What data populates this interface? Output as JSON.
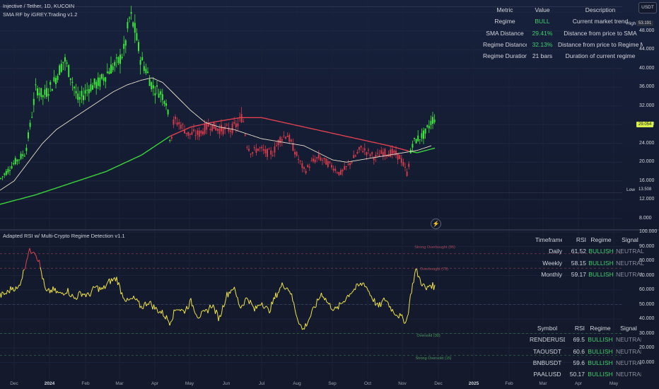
{
  "header": {
    "symbol_line": "Injective / Tether, 1D, KUCOIN",
    "indicator_line": "SMA RF by iGREY.Trading v1.2",
    "rsi_indicator_title": "Adapted RSI w/ Multi-Crypto Regime Detection v1.1",
    "currency_button": "USDT"
  },
  "regime_table": {
    "headers": [
      "Metric",
      "Value",
      "Description"
    ],
    "rows": [
      {
        "metric": "Regime",
        "value": "BULL",
        "description": "Current market trend",
        "value_color": "#3fcf6b"
      },
      {
        "metric": "SMA Distance",
        "value": "29.41%",
        "description": "Distance from price to SMA",
        "value_color": "#3fcf6b"
      },
      {
        "metric": "Regime Distance",
        "value": "32.13%",
        "description": "Distance from price to Regime MA",
        "value_color": "#3fcf6b"
      },
      {
        "metric": "Regime Duration",
        "value": "21 bars",
        "description": "Duration of current regime",
        "value_color": "#d1d4dc"
      }
    ]
  },
  "timeframe_table": {
    "headers": [
      "Timeframe",
      "RSI",
      "Regime",
      "Signal"
    ],
    "rows": [
      {
        "timeframe": "Daily",
        "rsi": "61.52",
        "regime": "BULLISH",
        "signal": "NEUTRAL"
      },
      {
        "timeframe": "Weekly",
        "rsi": "58.15",
        "regime": "BULLISH",
        "signal": "NEUTRAL"
      },
      {
        "timeframe": "Monthly",
        "rsi": "59.17",
        "regime": "BULLISH",
        "signal": "NEUTRAL"
      }
    ]
  },
  "symbol_table": {
    "headers": [
      "Symbol",
      "RSI",
      "Regime",
      "Signal"
    ],
    "rows": [
      {
        "symbol": "RENDERUSDT",
        "rsi": "69.5",
        "regime": "BULLISH",
        "signal": "NEUTRAL"
      },
      {
        "symbol": "TAOUSDT",
        "rsi": "60.6",
        "regime": "BULLISH",
        "signal": "NEUTRAL"
      },
      {
        "symbol": "BNBUSDT",
        "rsi": "59.6",
        "regime": "BULLISH",
        "signal": "NEUTRAL"
      },
      {
        "symbol": "PAALUSD",
        "rsi": "50.17",
        "regime": "BULLISH",
        "signal": "NEUTRAL"
      }
    ]
  },
  "price_axis": {
    "ticks": [
      "52.000",
      "48.000",
      "44.000",
      "40.000",
      "36.000",
      "32.000",
      "28.000",
      "24.000",
      "20.000",
      "16.000",
      "12.000",
      "8.000"
    ],
    "high_label": "High",
    "high_value": "53.191",
    "low_label": "Low",
    "low_value": "13.508",
    "last_price": "29.054"
  },
  "rsi_axis": {
    "ticks": [
      "100.000",
      "90.000",
      "80.000",
      "70.000",
      "60.000",
      "50.000",
      "40.000",
      "30.000",
      "20.000",
      "10.000"
    ]
  },
  "rsi_levels": {
    "strong_overbought": "Strong Overbought (85)",
    "overbought": "Overbought (75)",
    "oversold": "Oversold (30)",
    "strong_oversold": "Strong Oversold (15)"
  },
  "time_axis": {
    "labels": [
      "Dec",
      "2024",
      "Feb",
      "Mar",
      "Apr",
      "May",
      "Jun",
      "Jul",
      "Aug",
      "Sep",
      "Oct",
      "Nov",
      "Dec",
      "2025",
      "Feb",
      "Mar",
      "Apr",
      "May"
    ]
  },
  "chart_data": {
    "type": "candlestick",
    "price_ylim": [
      6,
      54
    ],
    "rsi_ylim": [
      0,
      100
    ],
    "price_key": [
      [
        0,
        16.5
      ],
      [
        20,
        20
      ],
      [
        35,
        22
      ],
      [
        42,
        28
      ],
      [
        50,
        36
      ],
      [
        60,
        34
      ],
      [
        75,
        37
      ],
      [
        90,
        42
      ],
      [
        100,
        38
      ],
      [
        110,
        33
      ],
      [
        125,
        36
      ],
      [
        140,
        37
      ],
      [
        155,
        40
      ],
      [
        165,
        41
      ],
      [
        175,
        44
      ],
      [
        183,
        51.5
      ],
      [
        190,
        48
      ],
      [
        198,
        42
      ],
      [
        205,
        40
      ],
      [
        215,
        36
      ],
      [
        225,
        35
      ],
      [
        235,
        33
      ],
      [
        240,
        24
      ],
      [
        245,
        29
      ],
      [
        255,
        28
      ],
      [
        265,
        26
      ],
      [
        280,
        26
      ],
      [
        295,
        28
      ],
      [
        310,
        27
      ],
      [
        325,
        27
      ],
      [
        335,
        28
      ],
      [
        342,
        30
      ],
      [
        348,
        24
      ],
      [
        355,
        22
      ],
      [
        365,
        23
      ],
      [
        375,
        22
      ],
      [
        385,
        22
      ],
      [
        395,
        25
      ],
      [
        405,
        26
      ],
      [
        420,
        21
      ],
      [
        430,
        18
      ],
      [
        440,
        20
      ],
      [
        450,
        21
      ],
      [
        460,
        20
      ],
      [
        470,
        19
      ],
      [
        480,
        17.5
      ],
      [
        490,
        19
      ],
      [
        500,
        21
      ],
      [
        510,
        23
      ],
      [
        520,
        22
      ],
      [
        530,
        21
      ],
      [
        540,
        22
      ],
      [
        555,
        22
      ],
      [
        565,
        21
      ],
      [
        575,
        17.5
      ],
      [
        582,
        24
      ],
      [
        590,
        25
      ],
      [
        600,
        26
      ],
      [
        610,
        29
      ],
      [
        615,
        29.5
      ]
    ],
    "sma_key": [
      [
        0,
        14
      ],
      [
        20,
        16
      ],
      [
        40,
        20
      ],
      [
        60,
        24
      ],
      [
        80,
        27
      ],
      [
        100,
        29
      ],
      [
        120,
        31
      ],
      [
        140,
        33
      ],
      [
        160,
        35
      ],
      [
        180,
        36.5
      ],
      [
        200,
        37.5
      ],
      [
        215,
        38
      ],
      [
        230,
        37
      ],
      [
        250,
        34
      ],
      [
        270,
        31
      ],
      [
        290,
        28.5
      ],
      [
        310,
        27.5
      ],
      [
        330,
        27
      ],
      [
        350,
        26
      ],
      [
        370,
        25
      ],
      [
        390,
        24.5
      ],
      [
        410,
        24
      ],
      [
        430,
        23.5
      ],
      [
        450,
        22
      ],
      [
        470,
        20.5
      ],
      [
        490,
        20
      ],
      [
        510,
        20.5
      ],
      [
        530,
        21
      ],
      [
        550,
        21.5
      ],
      [
        570,
        22
      ],
      [
        590,
        22.5
      ],
      [
        610,
        23.5
      ]
    ],
    "regime_key": [
      [
        0,
        11
      ],
      [
        50,
        13
      ],
      [
        100,
        15.5
      ],
      [
        150,
        18
      ],
      [
        200,
        21.5
      ],
      [
        240,
        25.5
      ],
      [
        270,
        27.5
      ],
      [
        300,
        28.5
      ],
      [
        340,
        29.5
      ],
      [
        370,
        29.5
      ],
      [
        400,
        28.5
      ],
      [
        430,
        27.5
      ],
      [
        460,
        26.5
      ],
      [
        490,
        25.5
      ],
      [
        520,
        24.5
      ],
      [
        550,
        23.5
      ],
      [
        575,
        22.5
      ],
      [
        590,
        22
      ],
      [
        615,
        23
      ]
    ],
    "regime_change_x": [
      240,
      579
    ],
    "rsi_key": [
      [
        0,
        56
      ],
      [
        10,
        58
      ],
      [
        18,
        62
      ],
      [
        25,
        60
      ],
      [
        33,
        72
      ],
      [
        40,
        86
      ],
      [
        48,
        88
      ],
      [
        55,
        80
      ],
      [
        65,
        58
      ],
      [
        75,
        60
      ],
      [
        85,
        57
      ],
      [
        95,
        60
      ],
      [
        105,
        54
      ],
      [
        115,
        58
      ],
      [
        125,
        56
      ],
      [
        135,
        62
      ],
      [
        145,
        60
      ],
      [
        155,
        66
      ],
      [
        165,
        68
      ],
      [
        172,
        58
      ],
      [
        180,
        52
      ],
      [
        190,
        54
      ],
      [
        200,
        48
      ],
      [
        210,
        52
      ],
      [
        220,
        47
      ],
      [
        230,
        44
      ],
      [
        240,
        38
      ],
      [
        250,
        48
      ],
      [
        260,
        45
      ],
      [
        270,
        52
      ],
      [
        280,
        42
      ],
      [
        290,
        44
      ],
      [
        300,
        50
      ],
      [
        310,
        40
      ],
      [
        320,
        56
      ],
      [
        330,
        62
      ],
      [
        340,
        48
      ],
      [
        350,
        55
      ],
      [
        360,
        46
      ],
      [
        370,
        52
      ],
      [
        380,
        45
      ],
      [
        390,
        56
      ],
      [
        400,
        64
      ],
      [
        410,
        60
      ],
      [
        420,
        42
      ],
      [
        428,
        32
      ],
      [
        435,
        38
      ],
      [
        445,
        48
      ],
      [
        455,
        58
      ],
      [
        465,
        50
      ],
      [
        475,
        46
      ],
      [
        485,
        52
      ],
      [
        495,
        58
      ],
      [
        505,
        62
      ],
      [
        515,
        65
      ],
      [
        525,
        56
      ],
      [
        535,
        48
      ],
      [
        545,
        54
      ],
      [
        555,
        46
      ],
      [
        565,
        42
      ],
      [
        575,
        38
      ],
      [
        582,
        60
      ],
      [
        588,
        74
      ],
      [
        595,
        66
      ],
      [
        603,
        60
      ],
      [
        608,
        64
      ],
      [
        615,
        62
      ]
    ]
  }
}
